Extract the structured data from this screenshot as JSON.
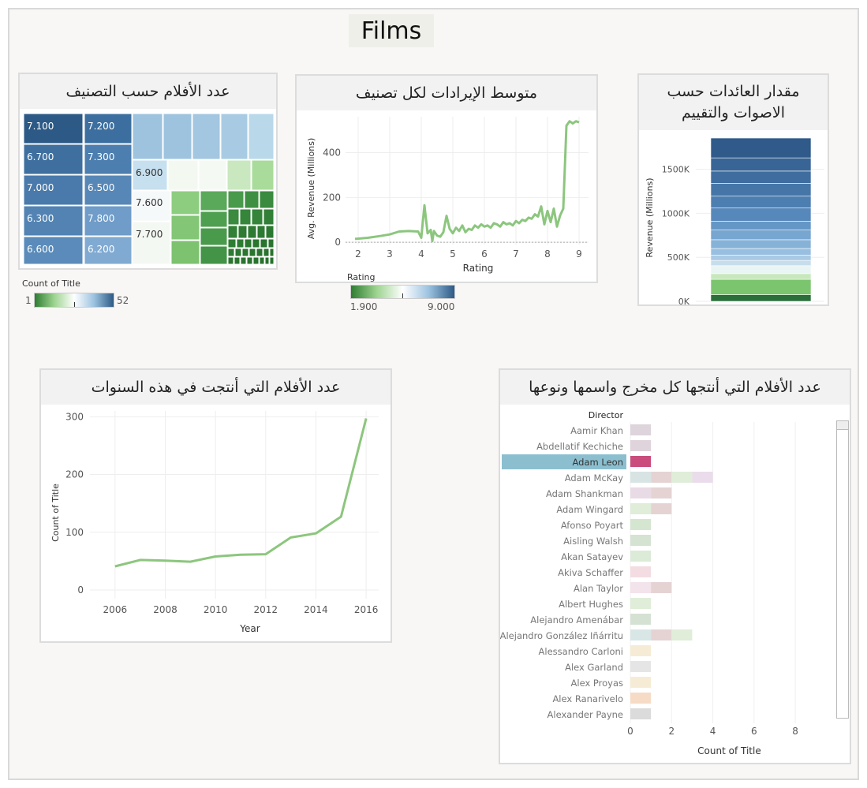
{
  "page_title": "Films",
  "colors": {
    "blue_dark": "#2c5985",
    "blue_light": "#b9d8ea",
    "green_dark": "#2e7d32",
    "green_light": "#9ed491",
    "line": "#8cc67e",
    "highlight": "#8bbfd0",
    "bar_pink": "#c94c7c"
  },
  "panels": {
    "treemap_title": "عدد الأفلام حسب التصنيف",
    "avg_revenue_title": "متوسط الإيرادات لكل تصنيف",
    "revenue_title": "مقدار العائدات حسب الاصوات والتقييم",
    "years_title": "عدد الأفلام التي أنتجت في هذه السنوات",
    "director_title": "عدد الأفلام التي أنتجها كل مخرج واسمها ونوعها"
  },
  "legends": {
    "count": {
      "title": "Count of Title",
      "min": "1",
      "max": "52"
    },
    "rating": {
      "title": "Rating",
      "min": "1.900",
      "max": "9.000"
    }
  },
  "chart_data": [
    {
      "type": "treemap",
      "title": "عدد الأفلام حسب التصنيف",
      "labels": [
        "7.100",
        "7.200",
        "6.700",
        "7.300",
        "7.000",
        "6.500",
        "6.300",
        "7.800",
        "6.600",
        "6.200",
        "6.900",
        "7.600",
        "7.700"
      ]
    },
    {
      "type": "line",
      "title": "متوسط الإيرادات لكل تصنيف",
      "xlabel": "Rating",
      "ylabel": "Avg. Revenue (Millions)",
      "xlim": [
        1.6,
        9.3
      ],
      "ylim": [
        -10,
        560
      ],
      "xticks": [
        2,
        3,
        4,
        5,
        6,
        7,
        8,
        9
      ],
      "yticks": [
        0,
        200,
        400
      ],
      "x": [
        1.9,
        2.3,
        2.7,
        3.0,
        3.3,
        3.6,
        3.9,
        4.0,
        4.1,
        4.2,
        4.3,
        4.35,
        4.4,
        4.5,
        4.6,
        4.7,
        4.8,
        4.9,
        5.0,
        5.1,
        5.2,
        5.3,
        5.4,
        5.5,
        5.6,
        5.7,
        5.8,
        5.9,
        6.0,
        6.1,
        6.2,
        6.3,
        6.4,
        6.5,
        6.6,
        6.7,
        6.8,
        6.9,
        7.0,
        7.1,
        7.2,
        7.3,
        7.4,
        7.5,
        7.6,
        7.7,
        7.8,
        7.9,
        8.0,
        8.1,
        8.2,
        8.3,
        8.4,
        8.5,
        8.6,
        8.7,
        8.8,
        8.9,
        9.0
      ],
      "y": [
        15,
        20,
        28,
        35,
        48,
        50,
        48,
        20,
        165,
        40,
        55,
        5,
        50,
        30,
        25,
        45,
        118,
        60,
        40,
        65,
        50,
        75,
        45,
        60,
        55,
        75,
        65,
        80,
        70,
        75,
        65,
        85,
        80,
        70,
        90,
        80,
        85,
        75,
        95,
        85,
        100,
        95,
        110,
        105,
        125,
        115,
        160,
        80,
        140,
        90,
        150,
        70,
        120,
        150,
        520,
        540,
        530,
        540,
        535
      ],
      "type_note": "line"
    },
    {
      "type": "stacked_bar",
      "title": "مقدار العائدات حسب الاصوات والتقييم",
      "ylabel": "Revenue (Millions)",
      "ylim": [
        0,
        1900
      ],
      "yticks": [
        0,
        500,
        1000,
        1500
      ],
      "ytick_labels": [
        "0K",
        "500K",
        "1000K",
        "1500K"
      ],
      "segments": [
        75,
        175,
        65,
        90,
        60,
        60,
        75,
        100,
        110,
        100,
        150,
        135,
        145,
        140,
        150,
        225
      ]
    },
    {
      "type": "line",
      "title": "عدد الأفلام التي أنتجت في هذه السنوات",
      "xlabel": "Year",
      "ylabel": "Count of Title",
      "x": [
        2006,
        2007,
        2008,
        2009,
        2010,
        2011,
        2012,
        2013,
        2014,
        2015,
        2016
      ],
      "y": [
        41,
        52,
        51,
        49,
        58,
        61,
        62,
        91,
        98,
        127,
        297
      ],
      "xticks": [
        2006,
        2008,
        2010,
        2012,
        2014,
        2016
      ],
      "yticks": [
        0,
        100,
        200,
        300
      ],
      "xlim": [
        2005,
        2016.5
      ],
      "ylim": [
        -15,
        310
      ]
    },
    {
      "type": "bar",
      "title": "عدد الأفلام التي أنتجها كل مخرج واسمها ونوعها",
      "header": "Director",
      "xlabel": "Count of Title",
      "xticks": [
        0,
        2,
        4,
        6,
        8
      ],
      "xlim": [
        0,
        8.8
      ],
      "highlight": "Adam Leon",
      "categories": [
        "Aamir Khan",
        "Abdellatif Kechiche",
        "Adam Leon",
        "Adam McKay",
        "Adam Shankman",
        "Adam Wingard",
        "Afonso Poyart",
        "Aisling Walsh",
        "Akan Satayev",
        "Akiva Schaffer",
        "Alan Taylor",
        "Albert Hughes",
        "Alejandro Amenábar",
        "Alejandro González Iñárritu",
        "Alessandro Carloni",
        "Alex Garland",
        "Alex Proyas",
        "Alex Ranarivelo",
        "Alexander Payne"
      ],
      "values": [
        1,
        1,
        1,
        4,
        2,
        2,
        1,
        1,
        1,
        1,
        2,
        1,
        1,
        3,
        1,
        1,
        1,
        1,
        1
      ]
    }
  ]
}
